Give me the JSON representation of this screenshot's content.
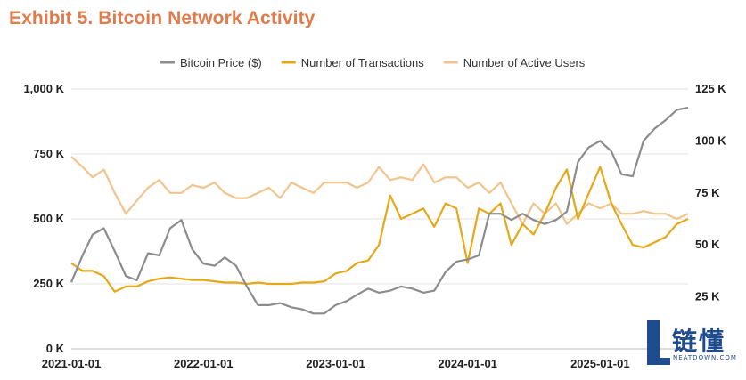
{
  "title": "Exhibit 5. Bitcoin Network Activity",
  "logo": {
    "chinese_text": "链懂",
    "english_text": "NEATDOWN.COM"
  },
  "chart_data": {
    "type": "line",
    "legend_position": "top",
    "grid": true,
    "x": [
      "2021-01-01",
      "2021-02-01",
      "2021-03-01",
      "2021-04-01",
      "2021-05-01",
      "2021-06-01",
      "2021-07-01",
      "2021-08-01",
      "2021-09-01",
      "2021-10-01",
      "2021-11-01",
      "2021-12-01",
      "2022-01-01",
      "2022-02-01",
      "2022-03-01",
      "2022-04-01",
      "2022-05-01",
      "2022-06-01",
      "2022-07-01",
      "2022-08-01",
      "2022-09-01",
      "2022-10-01",
      "2022-11-01",
      "2022-12-01",
      "2023-01-01",
      "2023-02-01",
      "2023-03-01",
      "2023-04-01",
      "2023-05-01",
      "2023-06-01",
      "2023-07-01",
      "2023-08-01",
      "2023-09-01",
      "2023-10-01",
      "2023-11-01",
      "2023-12-01",
      "2024-01-01",
      "2024-02-01",
      "2024-03-01",
      "2024-04-01",
      "2024-05-01",
      "2024-06-01",
      "2024-07-01",
      "2024-08-01",
      "2024-09-01",
      "2024-10-01",
      "2024-11-01",
      "2024-12-01",
      "2025-01-01",
      "2025-02-01",
      "2025-03-01",
      "2025-04-01",
      "2025-05-01",
      "2025-06-01",
      "2025-07-01",
      "2025-08-01",
      "2025-09-01"
    ],
    "x_ticks": [
      "2021-01-01",
      "2022-01-01",
      "2023-01-01",
      "2024-01-01",
      "2025-01-01"
    ],
    "y_left": {
      "ticks": [
        "0 K",
        "250 K",
        "500 K",
        "750 K",
        "1,000 K"
      ],
      "range": [
        0,
        1000
      ]
    },
    "y_right": {
      "ticks": [
        "25 K",
        "50 K",
        "75 K",
        "100 K",
        "125 K"
      ],
      "range": [
        0,
        125
      ]
    },
    "series": [
      {
        "name": "Bitcoin Price ($)",
        "color": "#8c8c8c",
        "axis": "right",
        "values": [
          32,
          45,
          55,
          58,
          47,
          35,
          33,
          46,
          45,
          58,
          62,
          48,
          41,
          40,
          44,
          40,
          30,
          21,
          21,
          22,
          20,
          19,
          17,
          17,
          21,
          23,
          26,
          29,
          27,
          28,
          30,
          29,
          27,
          28,
          37,
          42,
          43,
          45,
          65,
          65,
          62,
          65,
          62,
          60,
          62,
          66,
          90,
          97,
          100,
          95,
          84,
          83,
          100,
          106,
          110,
          115,
          116
        ]
      },
      {
        "name": "Number of Transactions",
        "color": "#e6a817",
        "axis": "left",
        "values": [
          330,
          300,
          300,
          280,
          220,
          240,
          240,
          260,
          270,
          275,
          270,
          265,
          265,
          260,
          255,
          255,
          250,
          255,
          250,
          250,
          250,
          255,
          255,
          260,
          290,
          300,
          330,
          340,
          400,
          590,
          500,
          520,
          540,
          470,
          560,
          540,
          330,
          540,
          520,
          560,
          400,
          480,
          440,
          520,
          620,
          690,
          500,
          600,
          700,
          560,
          480,
          400,
          390,
          410,
          430,
          480,
          500
        ]
      },
      {
        "name": "Number of Active Users",
        "color": "#f2c48d",
        "axis": "left",
        "values": [
          740,
          700,
          660,
          690,
          600,
          520,
          570,
          620,
          650,
          600,
          600,
          630,
          620,
          640,
          600,
          580,
          580,
          600,
          620,
          580,
          640,
          620,
          600,
          640,
          640,
          640,
          620,
          640,
          700,
          650,
          660,
          650,
          710,
          640,
          660,
          660,
          620,
          640,
          600,
          640,
          560,
          480,
          560,
          520,
          560,
          480,
          520,
          560,
          540,
          560,
          520,
          520,
          530,
          520,
          520,
          500,
          520
        ]
      }
    ]
  }
}
